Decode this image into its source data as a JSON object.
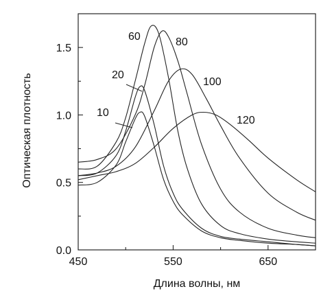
{
  "chart_data": {
    "type": "line",
    "xlabel": "Длина волны, нм",
    "ylabel": "Оптическая плотность",
    "xlim": [
      450,
      700
    ],
    "ylim": [
      0,
      1.75
    ],
    "x_ticks": [
      {
        "value": 450,
        "label": "450"
      },
      {
        "value": 550,
        "label": "550"
      },
      {
        "value": 650,
        "label": "650"
      }
    ],
    "y_ticks": [
      {
        "value": 0,
        "label": "0.0"
      },
      {
        "value": 0.5,
        "label": "0.5"
      },
      {
        "value": 1.0,
        "label": "1.0"
      },
      {
        "value": 1.5,
        "label": "1.5"
      }
    ],
    "grid": false,
    "legend": "none",
    "series": [
      {
        "name": "10",
        "x": [
          450,
          470,
          490,
          500,
          510,
          515,
          520,
          530,
          540,
          550,
          560,
          580,
          600,
          620,
          650,
          680,
          700
        ],
        "y": [
          0.48,
          0.5,
          0.63,
          0.8,
          0.97,
          1.02,
          0.99,
          0.77,
          0.52,
          0.36,
          0.26,
          0.14,
          0.09,
          0.07,
          0.05,
          0.04,
          0.03
        ]
      },
      {
        "name": "20",
        "x": [
          450,
          470,
          490,
          500,
          510,
          515,
          520,
          530,
          540,
          550,
          560,
          580,
          600,
          620,
          650,
          680,
          700
        ],
        "y": [
          0.55,
          0.57,
          0.7,
          0.88,
          1.13,
          1.21,
          1.18,
          0.93,
          0.62,
          0.42,
          0.3,
          0.16,
          0.1,
          0.08,
          0.06,
          0.04,
          0.03
        ]
      },
      {
        "name": "60",
        "x": [
          450,
          470,
          490,
          500,
          510,
          520,
          527,
          535,
          545,
          555,
          565,
          580,
          600,
          620,
          650,
          680,
          700
        ],
        "y": [
          0.6,
          0.62,
          0.8,
          0.98,
          1.25,
          1.53,
          1.66,
          1.6,
          1.28,
          0.88,
          0.6,
          0.34,
          0.18,
          0.12,
          0.08,
          0.06,
          0.05
        ]
      },
      {
        "name": "80",
        "x": [
          450,
          470,
          490,
          510,
          520,
          530,
          538,
          545,
          555,
          565,
          580,
          600,
          620,
          650,
          680,
          700
        ],
        "y": [
          0.65,
          0.67,
          0.75,
          1.0,
          1.22,
          1.5,
          1.62,
          1.58,
          1.4,
          1.15,
          0.78,
          0.45,
          0.28,
          0.16,
          0.11,
          0.09
        ]
      },
      {
        "name": "100",
        "x": [
          450,
          470,
          490,
          510,
          530,
          545,
          558,
          570,
          585,
          600,
          620,
          650,
          680,
          700
        ],
        "y": [
          0.55,
          0.57,
          0.62,
          0.76,
          1.03,
          1.25,
          1.34,
          1.3,
          1.12,
          0.92,
          0.68,
          0.42,
          0.28,
          0.22
        ]
      },
      {
        "name": "120",
        "x": [
          450,
          470,
          490,
          510,
          530,
          550,
          570,
          582,
          595,
          610,
          630,
          650,
          680,
          700
        ],
        "y": [
          0.52,
          0.55,
          0.58,
          0.64,
          0.76,
          0.9,
          1.0,
          1.02,
          1.0,
          0.93,
          0.81,
          0.68,
          0.52,
          0.43
        ]
      }
    ]
  }
}
